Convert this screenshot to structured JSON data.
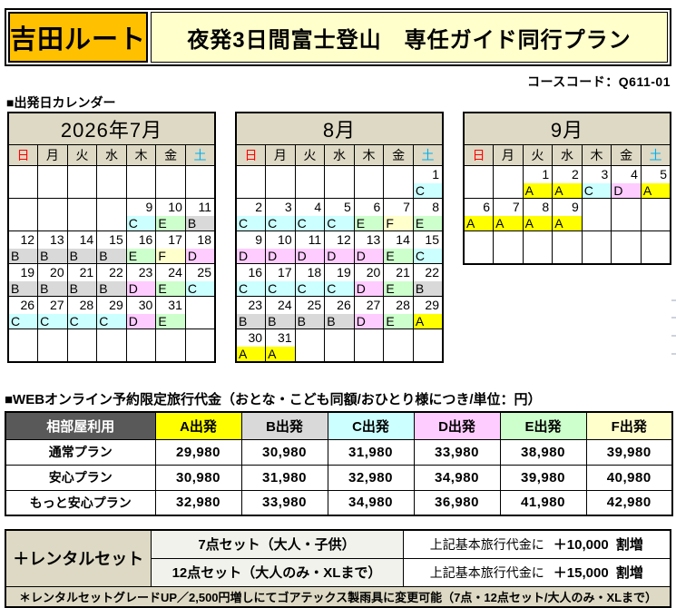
{
  "header": {
    "route_label": "吉田ルート",
    "plan_title": "夜発3日間富士登山　専任ガイド同行プラン",
    "course_code": "コースコード：Q611-01"
  },
  "colors": {
    "route_box_bg": "#FFC000",
    "title_box_bg": "#FFFFCC",
    "header_beige": "#DDD9C4",
    "dark_header": "#595959",
    "sunday_red": "#FF0000",
    "saturday_blue": "#00B0F0",
    "set_cell_bg": "#F2F2EC"
  },
  "codes": {
    "A": "#FFFF00",
    "B": "#D9D9D9",
    "C": "#CCFFFF",
    "D": "#FFCCFF",
    "E": "#CCFFCC",
    "F": "#FFFFCC"
  },
  "calendar_section": {
    "title": "■出発日カレンダー",
    "weekdays": [
      "日",
      "月",
      "火",
      "水",
      "木",
      "金",
      "土"
    ],
    "weekday_colors": [
      "#FF0000",
      "#000000",
      "#000000",
      "#000000",
      "#000000",
      "#000000",
      "#00B0F0"
    ],
    "months": [
      {
        "name": "july",
        "title": "2026年7月",
        "weeks": [
          [
            null,
            null,
            null,
            null,
            null,
            null,
            null
          ],
          [
            null,
            null,
            null,
            null,
            {
              "date": 9,
              "code": "C"
            },
            {
              "date": 10,
              "code": "E"
            },
            {
              "date": 11,
              "code": "B"
            }
          ],
          [
            {
              "date": 12,
              "code": "B"
            },
            {
              "date": 13,
              "code": "B"
            },
            {
              "date": 14,
              "code": "B"
            },
            {
              "date": 15,
              "code": "B"
            },
            {
              "date": 16,
              "code": "E"
            },
            {
              "date": 17,
              "code": "F"
            },
            {
              "date": 18,
              "code": "D"
            }
          ],
          [
            {
              "date": 19,
              "code": "B"
            },
            {
              "date": 20,
              "code": "B"
            },
            {
              "date": 21,
              "code": "B"
            },
            {
              "date": 22,
              "code": "B"
            },
            {
              "date": 23,
              "code": "D"
            },
            {
              "date": 24,
              "code": "E"
            },
            {
              "date": 25,
              "code": "C"
            }
          ],
          [
            {
              "date": 26,
              "code": "C"
            },
            {
              "date": 27,
              "code": "C"
            },
            {
              "date": 28,
              "code": "C"
            },
            {
              "date": 29,
              "code": "C"
            },
            {
              "date": 30,
              "code": "D"
            },
            {
              "date": 31,
              "code": "E"
            },
            null
          ],
          [
            null,
            null,
            null,
            null,
            null,
            null,
            null
          ]
        ]
      },
      {
        "name": "august",
        "title": "8月",
        "weeks": [
          [
            null,
            null,
            null,
            null,
            null,
            null,
            {
              "date": 1,
              "code": "C"
            }
          ],
          [
            {
              "date": 2,
              "code": "C"
            },
            {
              "date": 3,
              "code": "C"
            },
            {
              "date": 4,
              "code": "C"
            },
            {
              "date": 5,
              "code": "C"
            },
            {
              "date": 6,
              "code": "E"
            },
            {
              "date": 7,
              "code": "F"
            },
            {
              "date": 8,
              "code": "E"
            }
          ],
          [
            {
              "date": 9,
              "code": "D"
            },
            {
              "date": 10,
              "code": "D"
            },
            {
              "date": 11,
              "code": "D"
            },
            {
              "date": 12,
              "code": "D"
            },
            {
              "date": 13,
              "code": "D"
            },
            {
              "date": 14,
              "code": "E"
            },
            {
              "date": 15,
              "code": "C"
            }
          ],
          [
            {
              "date": 16,
              "code": "C"
            },
            {
              "date": 17,
              "code": "C"
            },
            {
              "date": 18,
              "code": "C"
            },
            {
              "date": 19,
              "code": "C"
            },
            {
              "date": 20,
              "code": "D"
            },
            {
              "date": 21,
              "code": "E"
            },
            {
              "date": 22,
              "code": "B"
            }
          ],
          [
            {
              "date": 23,
              "code": "B"
            },
            {
              "date": 24,
              "code": "B"
            },
            {
              "date": 25,
              "code": "B"
            },
            {
              "date": 26,
              "code": "B"
            },
            {
              "date": 27,
              "code": "D"
            },
            {
              "date": 28,
              "code": "E"
            },
            {
              "date": 29,
              "code": "A"
            }
          ],
          [
            {
              "date": 30,
              "code": "A"
            },
            {
              "date": 31,
              "code": "A"
            },
            null,
            null,
            null,
            null,
            null
          ]
        ]
      },
      {
        "name": "september",
        "title": "9月",
        "weeks": [
          [
            null,
            null,
            {
              "date": 1,
              "code": "A"
            },
            {
              "date": 2,
              "code": "A"
            },
            {
              "date": 3,
              "code": "C"
            },
            {
              "date": 4,
              "code": "D"
            },
            {
              "date": 5,
              "code": "A"
            }
          ],
          [
            {
              "date": 6,
              "code": "A"
            },
            {
              "date": 7,
              "code": "A"
            },
            {
              "date": 8,
              "code": "A"
            },
            {
              "date": 9,
              "code": "A"
            },
            null,
            null,
            null
          ],
          [
            null,
            null,
            null,
            null,
            null,
            null,
            null
          ]
        ]
      }
    ]
  },
  "price_section": {
    "title": "■WEBオンライン予約限定旅行代金（おとな・こども同額/おひとり様につき/単位：円）",
    "corner_header": "相部屋利用",
    "column_headers": [
      {
        "label": "A出発",
        "color": "#FFFF00"
      },
      {
        "label": "B出発",
        "color": "#D9D9D9"
      },
      {
        "label": "C出発",
        "color": "#CCFFFF"
      },
      {
        "label": "D出発",
        "color": "#FFCCFF"
      },
      {
        "label": "E出発",
        "color": "#CCFFCC"
      },
      {
        "label": "F出発",
        "color": "#FFFFCC"
      }
    ],
    "rows": [
      {
        "label": "通常プラン",
        "values": [
          "29,980",
          "30,980",
          "31,980",
          "33,980",
          "38,980",
          "39,980"
        ]
      },
      {
        "label": "安心プラン",
        "values": [
          "30,980",
          "31,980",
          "32,980",
          "34,980",
          "39,980",
          "40,980"
        ]
      },
      {
        "label": "もっと安心プラン",
        "values": [
          "32,980",
          "33,980",
          "34,980",
          "36,980",
          "41,980",
          "42,980"
        ]
      }
    ]
  },
  "rental_section": {
    "label": "＋レンタルセット",
    "rows": [
      {
        "set": "7点セット（大人・子供）",
        "note_prefix": "上記基本旅行代金に",
        "note_amount": "＋10,000",
        "note_suffix": "割増"
      },
      {
        "set": "12点セット（大人のみ・XLまで）",
        "note_prefix": "上記基本旅行代金に",
        "note_amount": "＋15,000",
        "note_suffix": "割増"
      }
    ],
    "footnote": "＊レンタルセットグレードUP／2,500円増しにてゴアテックス製雨具に変更可能（7点・12点セット/大人のみ・XLまで）"
  }
}
